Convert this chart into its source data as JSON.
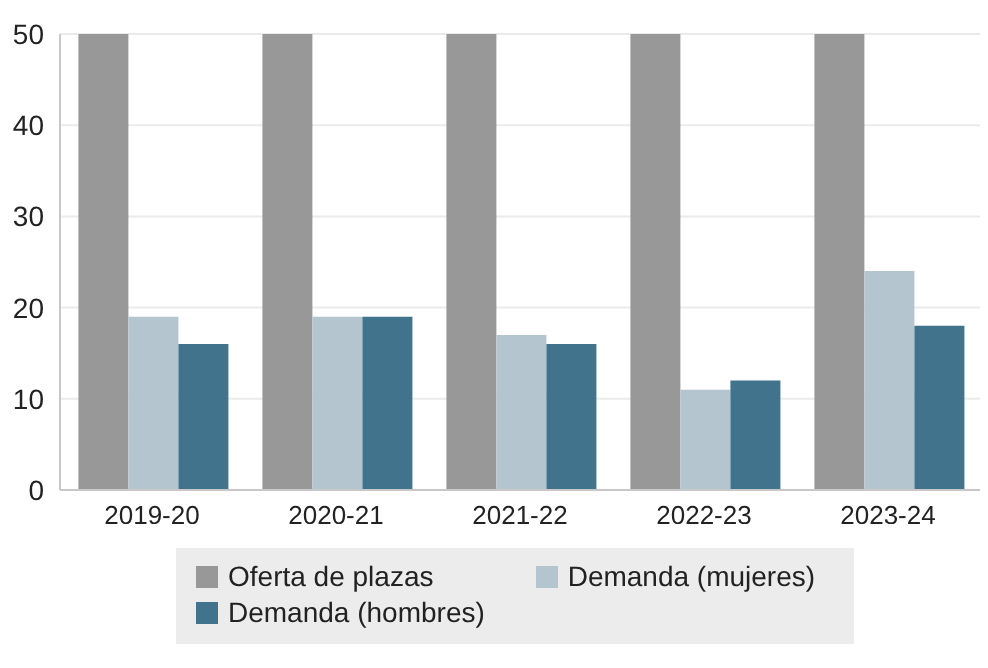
{
  "chart_data": {
    "type": "bar",
    "categories": [
      "2019-20",
      "2020-21",
      "2021-22",
      "2022-23",
      "2023-24"
    ],
    "series": [
      {
        "name": "Oferta de plazas",
        "color": "#989898",
        "values": [
          50,
          50,
          50,
          50,
          50
        ]
      },
      {
        "name": "Demanda (mujeres)",
        "color": "#b4c5cf",
        "values": [
          19,
          19,
          17,
          11,
          24
        ]
      },
      {
        "name": "Demanda (hombres)",
        "color": "#41738c",
        "values": [
          16,
          19,
          16,
          12,
          18
        ]
      }
    ],
    "ylim": [
      0,
      50
    ],
    "yticks": [
      0,
      10,
      20,
      30,
      40,
      50
    ],
    "grid": "y",
    "legend": "bottom"
  }
}
